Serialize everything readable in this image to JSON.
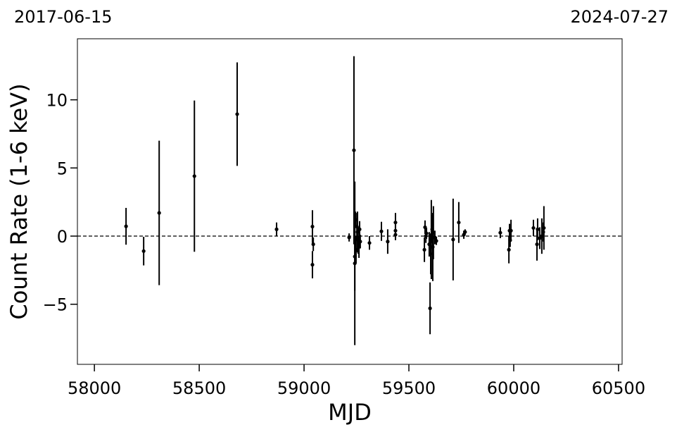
{
  "chart_data": {
    "type": "scatter",
    "annotations": [
      "2017-06-15",
      "2024-07-27"
    ],
    "xlabel": "MJD",
    "ylabel": "Count Rate (1-6 keV)",
    "xlim": [
      57919,
      60517
    ],
    "xticks": [
      58000,
      58500,
      59000,
      59500,
      60000,
      60500
    ],
    "ylim": [
      -9.41,
      14.48
    ],
    "yticks": [
      {
        "value": -5,
        "label": "−5"
      },
      0,
      5,
      10
    ],
    "reference_line": 0,
    "series": [
      {
        "color": "#000000",
        "x": [
          58151,
          58235,
          58309,
          58477,
          58681,
          58869,
          59040,
          59044,
          59040,
          59215,
          59238,
          59242,
          59245,
          59252,
          59255,
          59258,
          59262,
          59248,
          59265,
          59268,
          59242,
          59312,
          59369,
          59399,
          59436,
          59436,
          59436,
          59574,
          59577,
          59581,
          59584,
          59597,
          59601,
          59604,
          59607,
          59611,
          59614,
          59617,
          59624,
          59631,
          59711,
          59738,
          59762,
          59768,
          59936,
          59977,
          59980,
          59983,
          59987,
          60094,
          60111,
          60114,
          60124,
          60134,
          60141,
          60144
        ],
        "values": [
          0.72,
          -1.1,
          1.7,
          4.4,
          8.95,
          0.5,
          0.7,
          -0.6,
          -2.1,
          -0.1,
          6.3,
          -2.0,
          1.2,
          0.7,
          0.3,
          -0.3,
          -0.8,
          -1.0,
          0.5,
          -0.4,
          -1.5,
          -0.5,
          0.35,
          -0.4,
          1.0,
          0.4,
          0.1,
          -1.0,
          0.65,
          0,
          0.2,
          -0.6,
          -5.3,
          -1.3,
          -0.25,
          0.5,
          -0.8,
          0.25,
          -0.1,
          -0.35,
          -0.25,
          1.0,
          0.1,
          0.3,
          0.25,
          -1.0,
          0.4,
          -0.3,
          0.4,
          0.6,
          -0.6,
          0.5,
          -0.15,
          0,
          0.3,
          0.6
        ],
        "errors": [
          1.35,
          1.05,
          5.3,
          5.55,
          3.8,
          0.5,
          1.2,
          0.5,
          1.0,
          0.3,
          6.9,
          6.0,
          0.6,
          1.0,
          1.5,
          1.0,
          0.8,
          1.0,
          0.6,
          0.5,
          2.5,
          0.5,
          0.7,
          0.9,
          0.7,
          0.5,
          0.4,
          0.9,
          0.5,
          0.5,
          0.4,
          0.9,
          1.9,
          1.5,
          2.9,
          1.0,
          2.5,
          1.95,
          0.5,
          0.3,
          3.0,
          1.5,
          0.3,
          0.2,
          0.4,
          1.0,
          0.5,
          0.5,
          0.8,
          0.6,
          1.2,
          0.8,
          0.8,
          1.3,
          0.7,
          1.6
        ]
      }
    ]
  }
}
